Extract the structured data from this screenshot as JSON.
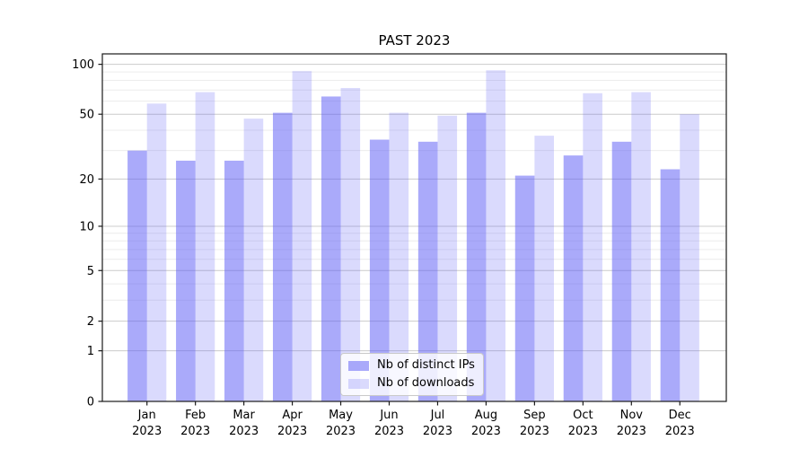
{
  "chart_data": {
    "type": "bar",
    "title": "PAST 2023",
    "categories": [
      "Jan 2023",
      "Feb 2023",
      "Mar 2023",
      "Apr 2023",
      "May 2023",
      "Jun 2023",
      "Jul 2023",
      "Aug 2023",
      "Sep 2023",
      "Oct 2023",
      "Nov 2023",
      "Dec 2023"
    ],
    "series": [
      {
        "name": "Nb of distinct IPs",
        "color": "rgba(85,85,245,0.5)",
        "color_hex_effective": "#aaaafa",
        "values": [
          30,
          26,
          26,
          51,
          64,
          35,
          34,
          51,
          21,
          28,
          34,
          23
        ]
      },
      {
        "name": "Nb of downloads",
        "color": "rgba(85,85,245,0.22)",
        "color_hex_effective": "#d9d9f9",
        "values": [
          58,
          68,
          47,
          91,
          72,
          51,
          49,
          92,
          37,
          67,
          68,
          50
        ]
      }
    ],
    "y_axis": {
      "scale": "log1p",
      "ticks": [
        0,
        1,
        2,
        5,
        10,
        20,
        50,
        100
      ],
      "minor_ticks": [
        3,
        4,
        6,
        7,
        8,
        9,
        30,
        40,
        60,
        70,
        80,
        90
      ],
      "max": 115.5
    },
    "x_axis": {
      "tick_count": 12
    },
    "legend": {
      "position": "bottom-center"
    },
    "grid": {
      "on": true,
      "major_color": "#cccccc",
      "minor_color": "#ececec"
    },
    "colors": {
      "spine": "#1a1a1a",
      "tick_text": "#000000",
      "background": "#ffffff"
    }
  }
}
